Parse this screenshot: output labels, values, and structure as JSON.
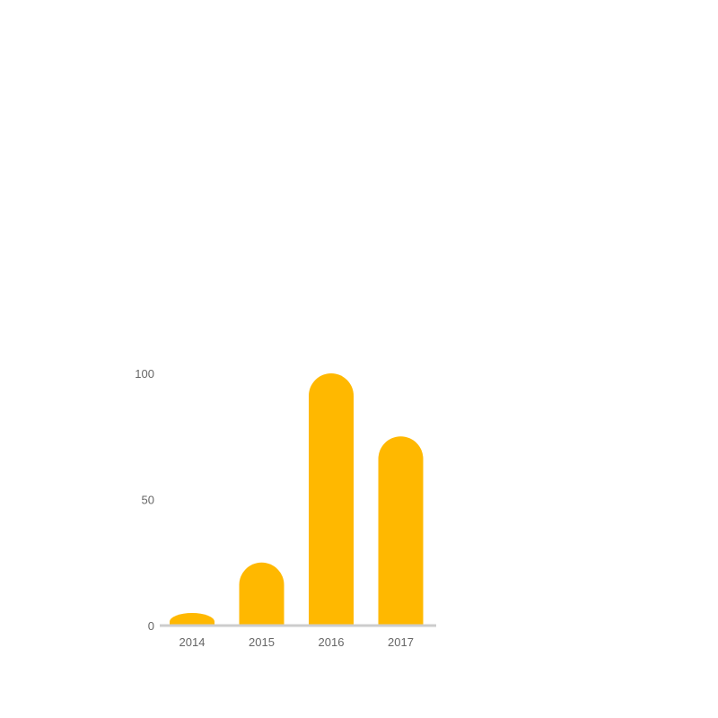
{
  "chart_data": {
    "type": "bar",
    "categories": [
      "2014",
      "2015",
      "2016",
      "2017"
    ],
    "values": [
      5,
      25,
      100,
      75
    ],
    "title": "",
    "xlabel": "",
    "ylabel": "",
    "ylim": [
      0,
      100
    ],
    "yticks": [
      0,
      50,
      100
    ],
    "ytick_labels": [
      "0",
      "50",
      "100"
    ],
    "grid": false,
    "legend": "none",
    "bar_color": "#FFB800",
    "axis_color": "#cccccc",
    "label_color": "#666666"
  }
}
